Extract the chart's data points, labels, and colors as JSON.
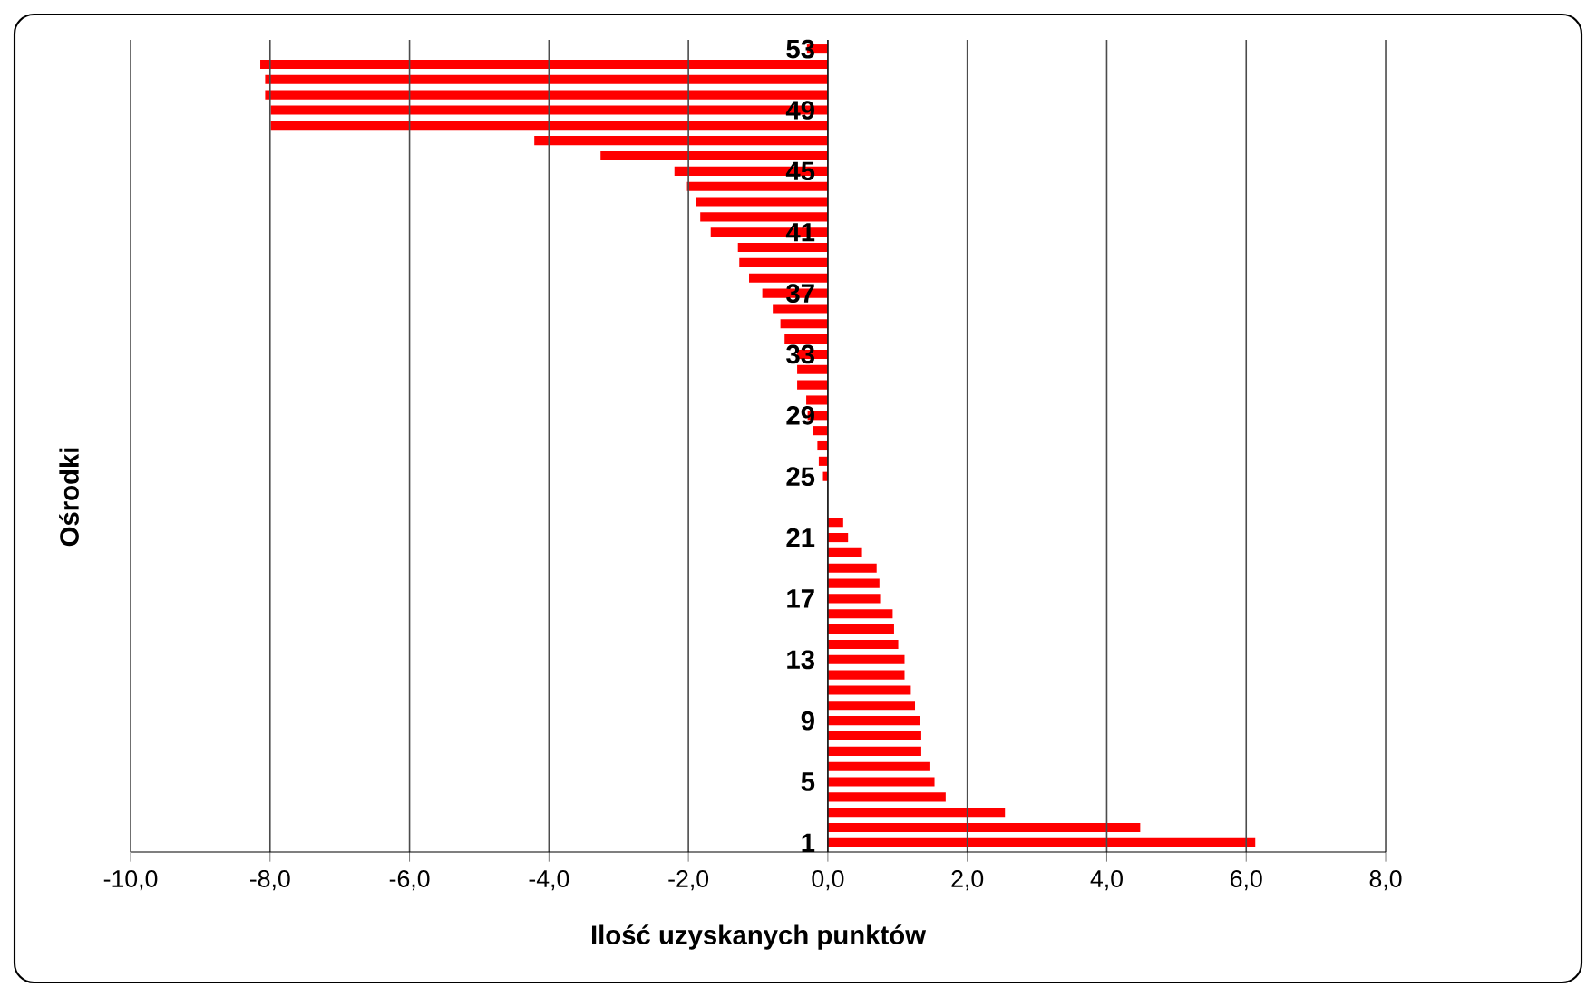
{
  "chart_data": {
    "type": "bar",
    "orientation": "horizontal",
    "xlabel": "Ilość uzyskanych punktów",
    "ylabel": "Ośrodki",
    "categories": [
      "53",
      null,
      null,
      null,
      "49",
      null,
      null,
      null,
      "45",
      null,
      null,
      null,
      "41",
      null,
      null,
      null,
      "37",
      null,
      null,
      null,
      "33",
      null,
      null,
      null,
      "29",
      null,
      null,
      null,
      "25",
      null,
      null,
      null,
      "21",
      null,
      null,
      null,
      "17",
      null,
      null,
      null,
      "13",
      null,
      null,
      null,
      "9",
      null,
      null,
      null,
      "5",
      null,
      null,
      null,
      "1"
    ],
    "values": [
      -0.3,
      -8.14,
      -8.07,
      -8.07,
      -7.99,
      -7.99,
      -4.21,
      -3.26,
      -2.2,
      -2.02,
      -1.89,
      -1.83,
      -1.68,
      -1.29,
      -1.27,
      -1.13,
      -0.94,
      -0.79,
      -0.68,
      -0.62,
      -0.44,
      -0.44,
      -0.44,
      -0.31,
      -0.29,
      -0.21,
      -0.15,
      -0.13,
      -0.07,
      0,
      0,
      0.22,
      0.29,
      0.49,
      0.7,
      0.74,
      0.75,
      0.93,
      0.95,
      1.01,
      1.1,
      1.1,
      1.19,
      1.25,
      1.32,
      1.34,
      1.34,
      1.47,
      1.53,
      1.69,
      2.54,
      4.48,
      6.13
    ],
    "color": "#ff0000",
    "xlim": [
      -10,
      8
    ],
    "xticks": [
      {
        "value": -10,
        "label": "-10,0"
      },
      {
        "value": -8,
        "label": "-8,0"
      },
      {
        "value": -6,
        "label": "-6,0"
      },
      {
        "value": -4,
        "label": "-4,0"
      },
      {
        "value": -2,
        "label": "-2,0"
      },
      {
        "value": 0,
        "label": "0,0"
      },
      {
        "value": 2,
        "label": "2,0"
      },
      {
        "value": 4,
        "label": "4,0"
      },
      {
        "value": 6,
        "label": "6,0"
      },
      {
        "value": 8,
        "label": "8,0"
      }
    ],
    "grid": "x"
  }
}
